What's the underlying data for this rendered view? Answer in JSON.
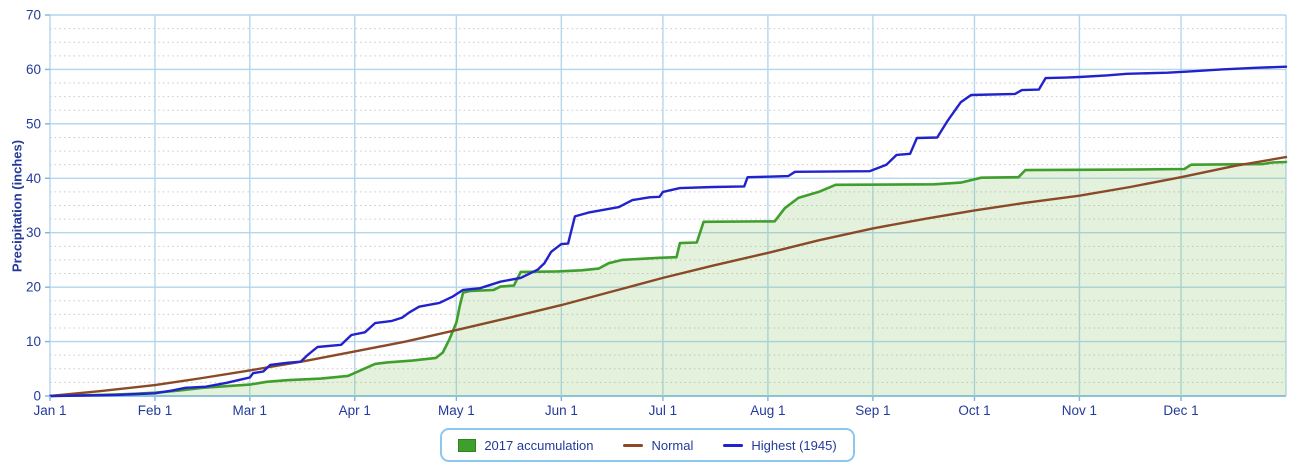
{
  "chart_data": {
    "type": "line",
    "title": "",
    "ylabel": "Precipitation (inches)",
    "xlabel": "",
    "ylim": [
      0,
      70
    ],
    "y_ticks": [
      0,
      10,
      20,
      30,
      40,
      50,
      60,
      70
    ],
    "y_minor_step": 2.5,
    "x_unit": "day_of_year",
    "xlim": [
      0,
      365
    ],
    "x_ticks": [
      {
        "day": 0,
        "label": "Jan 1"
      },
      {
        "day": 31,
        "label": "Feb 1"
      },
      {
        "day": 59,
        "label": "Mar 1"
      },
      {
        "day": 90,
        "label": "Apr 1"
      },
      {
        "day": 120,
        "label": "May 1"
      },
      {
        "day": 151,
        "label": "Jun 1"
      },
      {
        "day": 181,
        "label": "Jul 1"
      },
      {
        "day": 212,
        "label": "Aug 1"
      },
      {
        "day": 243,
        "label": "Sep 1"
      },
      {
        "day": 273,
        "label": "Oct 1"
      },
      {
        "day": 304,
        "label": "Nov 1"
      },
      {
        "day": 334,
        "label": "Dec 1"
      }
    ],
    "grid": true,
    "legend_position": "bottom-center",
    "series": [
      {
        "name": "2017 accumulation",
        "style": "area",
        "color": "#3f9f2d",
        "fill": "rgba(130,190,100,0.22)",
        "points": [
          [
            0,
            0
          ],
          [
            15,
            0.2
          ],
          [
            25,
            0.4
          ],
          [
            31,
            0.6
          ],
          [
            38,
            1.0
          ],
          [
            45,
            1.5
          ],
          [
            52,
            1.8
          ],
          [
            59,
            2.1
          ],
          [
            64,
            2.6
          ],
          [
            70,
            2.9
          ],
          [
            80,
            3.2
          ],
          [
            88,
            3.7
          ],
          [
            92,
            4.8
          ],
          [
            96,
            5.9
          ],
          [
            100,
            6.2
          ],
          [
            107,
            6.5
          ],
          [
            114,
            7.0
          ],
          [
            116,
            8.0
          ],
          [
            118,
            10.5
          ],
          [
            120,
            13.5
          ],
          [
            121,
            16.5
          ],
          [
            122,
            19.0
          ],
          [
            124,
            19.3
          ],
          [
            131,
            19.5
          ],
          [
            133,
            20.1
          ],
          [
            137,
            20.3
          ],
          [
            139,
            22.8
          ],
          [
            150,
            22.9
          ],
          [
            157,
            23.1
          ],
          [
            162,
            23.4
          ],
          [
            165,
            24.4
          ],
          [
            169,
            25.0
          ],
          [
            180,
            25.4
          ],
          [
            185,
            25.5
          ],
          [
            186,
            28.1
          ],
          [
            191,
            28.2
          ],
          [
            193,
            32.0
          ],
          [
            214,
            32.1
          ],
          [
            217,
            34.5
          ],
          [
            221,
            36.4
          ],
          [
            227,
            37.5
          ],
          [
            232,
            38.8
          ],
          [
            261,
            38.9
          ],
          [
            269,
            39.2
          ],
          [
            275,
            40.1
          ],
          [
            286,
            40.2
          ],
          [
            288,
            41.5
          ],
          [
            318,
            41.6
          ],
          [
            335,
            41.7
          ],
          [
            337,
            42.5
          ],
          [
            358,
            42.6
          ],
          [
            361,
            42.9
          ],
          [
            365,
            43.0
          ]
        ]
      },
      {
        "name": "Normal",
        "style": "line",
        "color": "#8a4a28",
        "points": [
          [
            0,
            0
          ],
          [
            15,
            0.9
          ],
          [
            31,
            2.0
          ],
          [
            45,
            3.3
          ],
          [
            59,
            4.7
          ],
          [
            75,
            6.4
          ],
          [
            90,
            8.2
          ],
          [
            105,
            10.0
          ],
          [
            120,
            12.1
          ],
          [
            135,
            14.3
          ],
          [
            151,
            16.7
          ],
          [
            166,
            19.2
          ],
          [
            181,
            21.7
          ],
          [
            196,
            24.0
          ],
          [
            212,
            26.3
          ],
          [
            227,
            28.6
          ],
          [
            243,
            30.8
          ],
          [
            258,
            32.5
          ],
          [
            273,
            34.1
          ],
          [
            288,
            35.5
          ],
          [
            304,
            36.8
          ],
          [
            319,
            38.4
          ],
          [
            334,
            40.2
          ],
          [
            350,
            42.3
          ],
          [
            365,
            43.9
          ]
        ]
      },
      {
        "name": "Highest (1945)",
        "style": "line",
        "color": "#2222cc",
        "points": [
          [
            0,
            0
          ],
          [
            10,
            0.1
          ],
          [
            20,
            0.2
          ],
          [
            31,
            0.5
          ],
          [
            36,
            1.0
          ],
          [
            40,
            1.5
          ],
          [
            46,
            1.7
          ],
          [
            52,
            2.4
          ],
          [
            57,
            3.1
          ],
          [
            59,
            3.4
          ],
          [
            60,
            4.2
          ],
          [
            63,
            4.5
          ],
          [
            65,
            5.7
          ],
          [
            70,
            6.1
          ],
          [
            74,
            6.3
          ],
          [
            76,
            7.5
          ],
          [
            79,
            9.0
          ],
          [
            86,
            9.4
          ],
          [
            89,
            11.2
          ],
          [
            93,
            11.7
          ],
          [
            96,
            13.4
          ],
          [
            101,
            13.8
          ],
          [
            104,
            14.4
          ],
          [
            106,
            15.3
          ],
          [
            109,
            16.4
          ],
          [
            115,
            17.1
          ],
          [
            119,
            18.3
          ],
          [
            122,
            19.5
          ],
          [
            127,
            19.8
          ],
          [
            133,
            21.0
          ],
          [
            139,
            21.7
          ],
          [
            144,
            23.2
          ],
          [
            146,
            24.4
          ],
          [
            148,
            26.5
          ],
          [
            151,
            27.9
          ],
          [
            153,
            28.0
          ],
          [
            155,
            33.0
          ],
          [
            159,
            33.7
          ],
          [
            168,
            34.7
          ],
          [
            172,
            36.0
          ],
          [
            177,
            36.5
          ],
          [
            180,
            36.6
          ],
          [
            181,
            37.5
          ],
          [
            186,
            38.2
          ],
          [
            196,
            38.4
          ],
          [
            205,
            38.5
          ],
          [
            206,
            40.2
          ],
          [
            212,
            40.3
          ],
          [
            218,
            40.4
          ],
          [
            220,
            41.2
          ],
          [
            242,
            41.3
          ],
          [
            247,
            42.5
          ],
          [
            250,
            44.3
          ],
          [
            254,
            44.5
          ],
          [
            256,
            47.4
          ],
          [
            262,
            47.5
          ],
          [
            265,
            50.5
          ],
          [
            269,
            54.0
          ],
          [
            272,
            55.3
          ],
          [
            285,
            55.5
          ],
          [
            287,
            56.2
          ],
          [
            292,
            56.3
          ],
          [
            294,
            58.4
          ],
          [
            300,
            58.5
          ],
          [
            304,
            58.6
          ],
          [
            312,
            58.9
          ],
          [
            318,
            59.2
          ],
          [
            330,
            59.4
          ],
          [
            336,
            59.6
          ],
          [
            346,
            60.0
          ],
          [
            356,
            60.3
          ],
          [
            365,
            60.5
          ]
        ]
      }
    ]
  },
  "legend": {
    "items": [
      {
        "label": "2017 accumulation",
        "swatch": "square",
        "color": "#3f9f2d"
      },
      {
        "label": "Normal",
        "swatch": "line",
        "color": "#8a4a28"
      },
      {
        "label": "Highest (1945)",
        "swatch": "line",
        "color": "#2222cc"
      }
    ]
  },
  "colors": {
    "axis_text": "#233a9c",
    "grid_major": "#b3d6ee",
    "grid_minor": "#c9c9c9",
    "axis_line": "#8cc3e6",
    "tick_mark": "#7fb5da",
    "legend_border": "#8cc7ee",
    "series_2017": "#3f9f2d",
    "series_2017_fill": "#e9f2e0",
    "series_normal": "#8a4a28",
    "series_highest": "#2222cc"
  }
}
